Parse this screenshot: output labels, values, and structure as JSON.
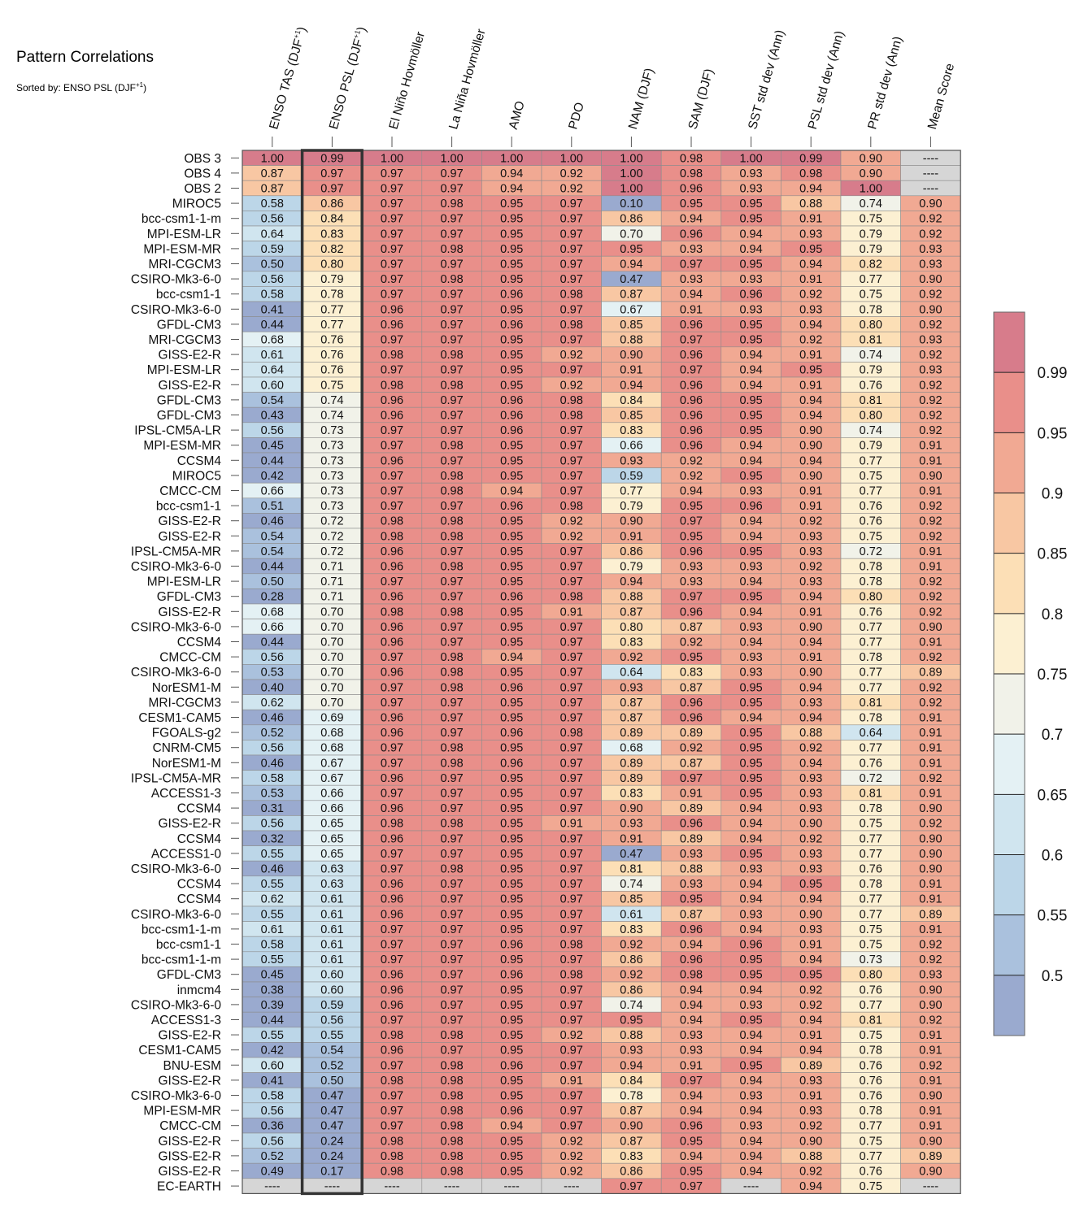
{
  "title": "Pattern Correlations",
  "subtitle_prefix": "Sorted by: ENSO PSL (DJF",
  "subtitle_sup": "+1",
  "subtitle_suffix": ")",
  "chart_data": {
    "type": "heatmap",
    "title": "Pattern Correlations",
    "sorted_by": "ENSO PSL (DJF+1)",
    "highlight_column": 1,
    "missing_label": "----",
    "columns": [
      {
        "label": "ENSO TAS (DJF",
        "sup": "+1",
        "suffix": ")"
      },
      {
        "label": "ENSO PSL (DJF",
        "sup": "+1",
        "suffix": ")"
      },
      {
        "label": "El Niño Hovmöller",
        "sup": "",
        "suffix": ""
      },
      {
        "label": "La Niña Hovmöller",
        "sup": "",
        "suffix": ""
      },
      {
        "label": "AMO",
        "sup": "",
        "suffix": ""
      },
      {
        "label": "PDO",
        "sup": "",
        "suffix": ""
      },
      {
        "label": "NAM (DJF)",
        "sup": "",
        "suffix": ""
      },
      {
        "label": "SAM (DJF)",
        "sup": "",
        "suffix": ""
      },
      {
        "label": "SST std dev (Ann)",
        "sup": "",
        "suffix": ""
      },
      {
        "label": "PSL std dev (Ann)",
        "sup": "",
        "suffix": ""
      },
      {
        "label": "PR std dev (Ann)",
        "sup": "",
        "suffix": ""
      },
      {
        "label": "Mean Score",
        "sup": "",
        "suffix": ""
      }
    ],
    "rows": [
      "OBS 3",
      "OBS 4",
      "OBS 2",
      "MIROC5",
      "bcc-csm1-1-m",
      "MPI-ESM-LR",
      "MPI-ESM-MR",
      "MRI-CGCM3",
      "CSIRO-Mk3-6-0",
      "bcc-csm1-1",
      "CSIRO-Mk3-6-0",
      "GFDL-CM3",
      "MRI-CGCM3",
      "GISS-E2-R",
      "MPI-ESM-LR",
      "GISS-E2-R",
      "GFDL-CM3",
      "GFDL-CM3",
      "IPSL-CM5A-LR",
      "MPI-ESM-MR",
      "CCSM4",
      "MIROC5",
      "CMCC-CM",
      "bcc-csm1-1",
      "GISS-E2-R",
      "GISS-E2-R",
      "IPSL-CM5A-MR",
      "CSIRO-Mk3-6-0",
      "MPI-ESM-LR",
      "GFDL-CM3",
      "GISS-E2-R",
      "CSIRO-Mk3-6-0",
      "CCSM4",
      "CMCC-CM",
      "CSIRO-Mk3-6-0",
      "NorESM1-M",
      "MRI-CGCM3",
      "CESM1-CAM5",
      "FGOALS-g2",
      "CNRM-CM5",
      "NorESM1-M",
      "IPSL-CM5A-MR",
      "ACCESS1-3",
      "CCSM4",
      "GISS-E2-R",
      "CCSM4",
      "ACCESS1-0",
      "CSIRO-Mk3-6-0",
      "CCSM4",
      "CCSM4",
      "CSIRO-Mk3-6-0",
      "bcc-csm1-1-m",
      "bcc-csm1-1",
      "bcc-csm1-1-m",
      "GFDL-CM3",
      "inmcm4",
      "CSIRO-Mk3-6-0",
      "ACCESS1-3",
      "GISS-E2-R",
      "CESM1-CAM5",
      "BNU-ESM",
      "GISS-E2-R",
      "CSIRO-Mk3-6-0",
      "MPI-ESM-MR",
      "CMCC-CM",
      "GISS-E2-R",
      "GISS-E2-R",
      "GISS-E2-R",
      "EC-EARTH"
    ],
    "values": [
      [
        1.0,
        0.99,
        1.0,
        1.0,
        1.0,
        1.0,
        1.0,
        0.98,
        1.0,
        0.99,
        0.9,
        null
      ],
      [
        0.87,
        0.97,
        0.97,
        0.97,
        0.94,
        0.92,
        1.0,
        0.98,
        0.93,
        0.98,
        0.9,
        null
      ],
      [
        0.87,
        0.97,
        0.97,
        0.97,
        0.94,
        0.92,
        1.0,
        0.96,
        0.93,
        0.94,
        1.0,
        null
      ],
      [
        0.58,
        0.86,
        0.97,
        0.98,
        0.95,
        0.97,
        0.1,
        0.95,
        0.95,
        0.88,
        0.74,
        0.9
      ],
      [
        0.56,
        0.84,
        0.97,
        0.97,
        0.95,
        0.97,
        0.86,
        0.94,
        0.95,
        0.91,
        0.75,
        0.92
      ],
      [
        0.64,
        0.83,
        0.97,
        0.97,
        0.95,
        0.97,
        0.7,
        0.96,
        0.94,
        0.93,
        0.79,
        0.92
      ],
      [
        0.59,
        0.82,
        0.97,
        0.98,
        0.95,
        0.97,
        0.95,
        0.93,
        0.94,
        0.95,
        0.79,
        0.93
      ],
      [
        0.5,
        0.8,
        0.97,
        0.97,
        0.95,
        0.97,
        0.94,
        0.97,
        0.95,
        0.94,
        0.82,
        0.93
      ],
      [
        0.56,
        0.79,
        0.97,
        0.98,
        0.95,
        0.97,
        0.47,
        0.93,
        0.93,
        0.91,
        0.77,
        0.9
      ],
      [
        0.58,
        0.78,
        0.97,
        0.97,
        0.96,
        0.98,
        0.87,
        0.94,
        0.96,
        0.92,
        0.75,
        0.92
      ],
      [
        0.41,
        0.77,
        0.96,
        0.97,
        0.95,
        0.97,
        0.67,
        0.91,
        0.93,
        0.93,
        0.78,
        0.9
      ],
      [
        0.44,
        0.77,
        0.96,
        0.97,
        0.96,
        0.98,
        0.85,
        0.96,
        0.95,
        0.94,
        0.8,
        0.92
      ],
      [
        0.68,
        0.76,
        0.97,
        0.97,
        0.95,
        0.97,
        0.88,
        0.97,
        0.95,
        0.92,
        0.81,
        0.93
      ],
      [
        0.61,
        0.76,
        0.98,
        0.98,
        0.95,
        0.92,
        0.9,
        0.96,
        0.94,
        0.91,
        0.74,
        0.92
      ],
      [
        0.64,
        0.76,
        0.97,
        0.97,
        0.95,
        0.97,
        0.91,
        0.97,
        0.94,
        0.95,
        0.79,
        0.93
      ],
      [
        0.6,
        0.75,
        0.98,
        0.98,
        0.95,
        0.92,
        0.94,
        0.96,
        0.94,
        0.91,
        0.76,
        0.92
      ],
      [
        0.54,
        0.74,
        0.96,
        0.97,
        0.96,
        0.98,
        0.84,
        0.96,
        0.95,
        0.94,
        0.81,
        0.92
      ],
      [
        0.43,
        0.74,
        0.96,
        0.97,
        0.96,
        0.98,
        0.85,
        0.96,
        0.95,
        0.94,
        0.8,
        0.92
      ],
      [
        0.56,
        0.73,
        0.97,
        0.97,
        0.96,
        0.97,
        0.83,
        0.96,
        0.95,
        0.9,
        0.74,
        0.92
      ],
      [
        0.45,
        0.73,
        0.97,
        0.98,
        0.95,
        0.97,
        0.66,
        0.96,
        0.94,
        0.9,
        0.79,
        0.91
      ],
      [
        0.44,
        0.73,
        0.96,
        0.97,
        0.95,
        0.97,
        0.93,
        0.92,
        0.94,
        0.94,
        0.77,
        0.91
      ],
      [
        0.42,
        0.73,
        0.97,
        0.98,
        0.95,
        0.97,
        0.59,
        0.92,
        0.95,
        0.9,
        0.75,
        0.9
      ],
      [
        0.66,
        0.73,
        0.97,
        0.98,
        0.94,
        0.97,
        0.77,
        0.94,
        0.93,
        0.91,
        0.77,
        0.91
      ],
      [
        0.51,
        0.73,
        0.97,
        0.97,
        0.96,
        0.98,
        0.79,
        0.95,
        0.96,
        0.91,
        0.76,
        0.92
      ],
      [
        0.46,
        0.72,
        0.98,
        0.98,
        0.95,
        0.92,
        0.9,
        0.97,
        0.94,
        0.92,
        0.76,
        0.92
      ],
      [
        0.54,
        0.72,
        0.98,
        0.98,
        0.95,
        0.92,
        0.91,
        0.95,
        0.94,
        0.93,
        0.75,
        0.92
      ],
      [
        0.54,
        0.72,
        0.96,
        0.97,
        0.95,
        0.97,
        0.86,
        0.96,
        0.95,
        0.93,
        0.72,
        0.91
      ],
      [
        0.44,
        0.71,
        0.96,
        0.98,
        0.95,
        0.97,
        0.79,
        0.93,
        0.93,
        0.92,
        0.78,
        0.91
      ],
      [
        0.5,
        0.71,
        0.97,
        0.97,
        0.95,
        0.97,
        0.94,
        0.93,
        0.94,
        0.93,
        0.78,
        0.92
      ],
      [
        0.28,
        0.71,
        0.96,
        0.97,
        0.96,
        0.98,
        0.88,
        0.97,
        0.95,
        0.94,
        0.8,
        0.92
      ],
      [
        0.68,
        0.7,
        0.98,
        0.98,
        0.95,
        0.91,
        0.87,
        0.96,
        0.94,
        0.91,
        0.76,
        0.92
      ],
      [
        0.66,
        0.7,
        0.96,
        0.97,
        0.95,
        0.97,
        0.8,
        0.87,
        0.93,
        0.9,
        0.77,
        0.9
      ],
      [
        0.44,
        0.7,
        0.96,
        0.97,
        0.95,
        0.97,
        0.83,
        0.92,
        0.94,
        0.94,
        0.77,
        0.91
      ],
      [
        0.56,
        0.7,
        0.97,
        0.98,
        0.94,
        0.97,
        0.92,
        0.95,
        0.93,
        0.91,
        0.78,
        0.92
      ],
      [
        0.53,
        0.7,
        0.96,
        0.98,
        0.95,
        0.97,
        0.64,
        0.83,
        0.93,
        0.9,
        0.77,
        0.89
      ],
      [
        0.4,
        0.7,
        0.97,
        0.98,
        0.96,
        0.97,
        0.93,
        0.87,
        0.95,
        0.94,
        0.77,
        0.92
      ],
      [
        0.62,
        0.7,
        0.97,
        0.97,
        0.95,
        0.97,
        0.87,
        0.96,
        0.95,
        0.93,
        0.81,
        0.92
      ],
      [
        0.46,
        0.69,
        0.96,
        0.97,
        0.95,
        0.97,
        0.87,
        0.96,
        0.94,
        0.94,
        0.78,
        0.91
      ],
      [
        0.52,
        0.68,
        0.96,
        0.97,
        0.96,
        0.98,
        0.89,
        0.89,
        0.95,
        0.88,
        0.64,
        0.91
      ],
      [
        0.56,
        0.68,
        0.97,
        0.98,
        0.95,
        0.97,
        0.68,
        0.92,
        0.95,
        0.92,
        0.77,
        0.91
      ],
      [
        0.46,
        0.67,
        0.97,
        0.98,
        0.96,
        0.97,
        0.89,
        0.87,
        0.95,
        0.94,
        0.76,
        0.91
      ],
      [
        0.58,
        0.67,
        0.96,
        0.97,
        0.95,
        0.97,
        0.89,
        0.97,
        0.95,
        0.93,
        0.72,
        0.92
      ],
      [
        0.53,
        0.66,
        0.97,
        0.97,
        0.95,
        0.97,
        0.83,
        0.91,
        0.95,
        0.93,
        0.81,
        0.91
      ],
      [
        0.31,
        0.66,
        0.96,
        0.97,
        0.95,
        0.97,
        0.9,
        0.89,
        0.94,
        0.93,
        0.78,
        0.9
      ],
      [
        0.56,
        0.65,
        0.98,
        0.98,
        0.95,
        0.91,
        0.93,
        0.96,
        0.94,
        0.9,
        0.75,
        0.92
      ],
      [
        0.32,
        0.65,
        0.96,
        0.97,
        0.95,
        0.97,
        0.91,
        0.89,
        0.94,
        0.92,
        0.77,
        0.9
      ],
      [
        0.55,
        0.65,
        0.97,
        0.97,
        0.95,
        0.97,
        0.47,
        0.93,
        0.95,
        0.93,
        0.77,
        0.9
      ],
      [
        0.46,
        0.63,
        0.97,
        0.98,
        0.95,
        0.97,
        0.81,
        0.88,
        0.93,
        0.93,
        0.76,
        0.9
      ],
      [
        0.55,
        0.63,
        0.96,
        0.97,
        0.95,
        0.97,
        0.74,
        0.93,
        0.94,
        0.95,
        0.78,
        0.91
      ],
      [
        0.62,
        0.61,
        0.96,
        0.97,
        0.95,
        0.97,
        0.85,
        0.95,
        0.94,
        0.94,
        0.77,
        0.91
      ],
      [
        0.55,
        0.61,
        0.96,
        0.97,
        0.95,
        0.97,
        0.61,
        0.87,
        0.93,
        0.9,
        0.77,
        0.89
      ],
      [
        0.61,
        0.61,
        0.97,
        0.97,
        0.95,
        0.97,
        0.83,
        0.96,
        0.94,
        0.93,
        0.75,
        0.91
      ],
      [
        0.58,
        0.61,
        0.97,
        0.97,
        0.96,
        0.98,
        0.92,
        0.94,
        0.96,
        0.91,
        0.75,
        0.92
      ],
      [
        0.55,
        0.61,
        0.97,
        0.97,
        0.95,
        0.97,
        0.86,
        0.96,
        0.95,
        0.94,
        0.73,
        0.92
      ],
      [
        0.45,
        0.6,
        0.96,
        0.97,
        0.96,
        0.98,
        0.92,
        0.98,
        0.95,
        0.95,
        0.8,
        0.93
      ],
      [
        0.38,
        0.6,
        0.96,
        0.97,
        0.95,
        0.97,
        0.86,
        0.94,
        0.94,
        0.92,
        0.76,
        0.9
      ],
      [
        0.39,
        0.59,
        0.96,
        0.97,
        0.95,
        0.97,
        0.74,
        0.94,
        0.93,
        0.92,
        0.77,
        0.9
      ],
      [
        0.44,
        0.56,
        0.97,
        0.97,
        0.95,
        0.97,
        0.95,
        0.94,
        0.95,
        0.94,
        0.81,
        0.92
      ],
      [
        0.55,
        0.55,
        0.98,
        0.98,
        0.95,
        0.92,
        0.88,
        0.93,
        0.94,
        0.91,
        0.75,
        0.91
      ],
      [
        0.42,
        0.54,
        0.96,
        0.97,
        0.95,
        0.97,
        0.93,
        0.93,
        0.94,
        0.94,
        0.78,
        0.91
      ],
      [
        0.6,
        0.52,
        0.97,
        0.98,
        0.96,
        0.97,
        0.94,
        0.91,
        0.95,
        0.89,
        0.76,
        0.92
      ],
      [
        0.41,
        0.5,
        0.98,
        0.98,
        0.95,
        0.91,
        0.84,
        0.97,
        0.94,
        0.93,
        0.76,
        0.91
      ],
      [
        0.58,
        0.47,
        0.97,
        0.98,
        0.95,
        0.97,
        0.78,
        0.94,
        0.93,
        0.91,
        0.76,
        0.9
      ],
      [
        0.56,
        0.47,
        0.97,
        0.98,
        0.96,
        0.97,
        0.87,
        0.94,
        0.94,
        0.93,
        0.78,
        0.91
      ],
      [
        0.36,
        0.47,
        0.97,
        0.98,
        0.94,
        0.97,
        0.9,
        0.96,
        0.93,
        0.92,
        0.77,
        0.91
      ],
      [
        0.56,
        0.24,
        0.98,
        0.98,
        0.95,
        0.92,
        0.87,
        0.95,
        0.94,
        0.9,
        0.75,
        0.9
      ],
      [
        0.52,
        0.24,
        0.98,
        0.98,
        0.95,
        0.92,
        0.83,
        0.94,
        0.94,
        0.88,
        0.77,
        0.89
      ],
      [
        0.49,
        0.17,
        0.98,
        0.98,
        0.95,
        0.92,
        0.86,
        0.95,
        0.94,
        0.92,
        0.76,
        0.9
      ],
      [
        null,
        null,
        null,
        null,
        null,
        null,
        0.97,
        0.97,
        null,
        0.94,
        0.75,
        null
      ]
    ],
    "colorbar": {
      "ticks": [
        0.5,
        0.55,
        0.6,
        0.65,
        0.7,
        0.75,
        0.8,
        0.85,
        0.9,
        0.95,
        0.99
      ],
      "tick_labels": [
        "0.5",
        "0.55",
        "0.6",
        "0.65",
        "0.7",
        "0.75",
        "0.8",
        "0.85",
        "0.9",
        "0.95",
        "0.99"
      ],
      "levels": [
        0.5,
        0.55,
        0.6,
        0.65,
        0.7,
        0.75,
        0.8,
        0.85,
        0.9,
        0.95,
        0.99
      ],
      "colors": [
        "#9aaacf",
        "#aac1dd",
        "#bcd6e8",
        "#d0e5ef",
        "#e4f1f4",
        "#f1f2e9",
        "#fcf0d2",
        "#fcdfb6",
        "#f8c7a3",
        "#f1a993",
        "#e98f8a",
        "#d77c8b"
      ],
      "missing_color": "#d6d6d6"
    }
  }
}
